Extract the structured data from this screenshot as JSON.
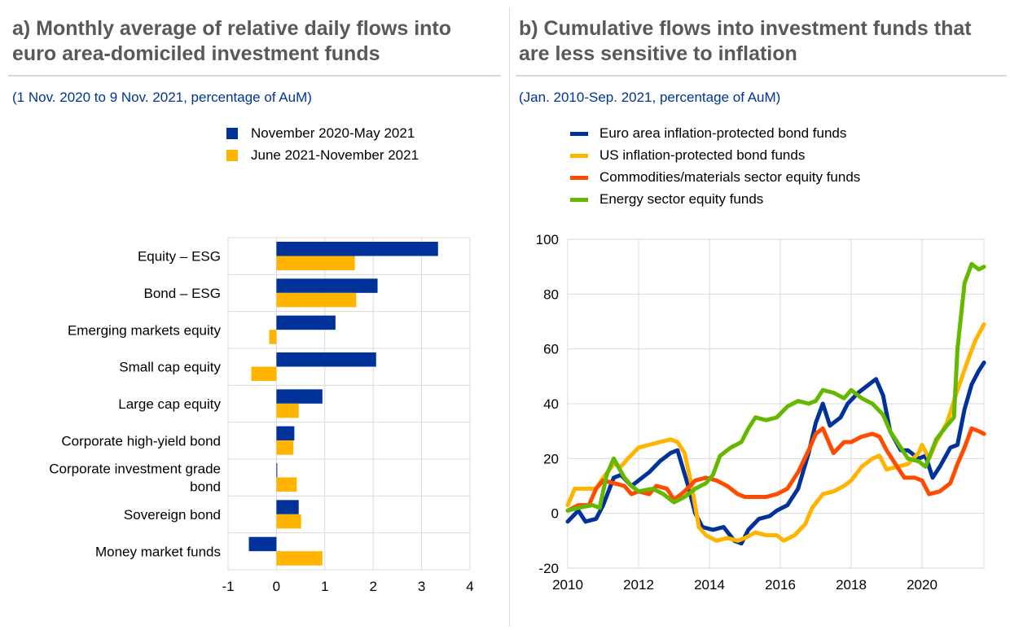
{
  "colors": {
    "blue": "#003299",
    "yellow": "#ffb400",
    "red": "#ff4b00",
    "green": "#65b800",
    "grid": "#d9d9d9"
  },
  "chart_data": [
    {
      "type": "bar",
      "orientation": "horizontal",
      "title": "a) Monthly average of relative daily flows into euro area-domiciled investment funds",
      "subtitle": "(1 Nov. 2020 to 9 Nov. 2021, percentage of AuM)",
      "categories": [
        "Equity – ESG",
        "Bond – ESG",
        "Emerging markets equity",
        "Small cap equity",
        "Large cap equity",
        "Corporate high-yield bond",
        "Corporate investment grade bond",
        "Sovereign bond",
        "Money market funds"
      ],
      "series": [
        {
          "name": "November 2020-May 2021",
          "color": "#003299",
          "values": [
            3.34,
            2.09,
            1.22,
            2.06,
            0.95,
            0.37,
            0.01,
            0.46,
            -0.57
          ]
        },
        {
          "name": "June 2021-November 2021",
          "color": "#ffb400",
          "values": [
            1.62,
            1.65,
            -0.15,
            -0.52,
            0.46,
            0.35,
            0.42,
            0.51,
            0.95
          ]
        }
      ],
      "xlim": [
        -1,
        4
      ],
      "xticks": [
        "-1",
        "0",
        "1",
        "2",
        "3",
        "4"
      ],
      "legend": "top"
    },
    {
      "type": "line",
      "title": "b) Cumulative flows into investment funds that are less sensitive to inflation",
      "subtitle": "(Jan. 2010-Sep. 2021, percentage of AuM)",
      "xlim": [
        2010,
        2021.8
      ],
      "ylim": [
        -20,
        100
      ],
      "xticks": [
        "2010",
        "2012",
        "2014",
        "2016",
        "2018",
        "2020"
      ],
      "yticks": [
        "-20",
        "0",
        "20",
        "40",
        "60",
        "80",
        "100"
      ],
      "legend": "top",
      "series": [
        {
          "name": "Euro area inflation-protected bond funds",
          "color": "#003299",
          "x": [
            2010,
            2010.3,
            2010.5,
            2010.8,
            2011.0,
            2011.3,
            2011.5,
            2011.8,
            2012.0,
            2012.3,
            2012.6,
            2012.9,
            2013.1,
            2013.4,
            2013.6,
            2013.8,
            2014.1,
            2014.4,
            2014.7,
            2014.9,
            2015.1,
            2015.4,
            2015.7,
            2015.9,
            2016.2,
            2016.5,
            2016.8,
            2017.0,
            2017.2,
            2017.4,
            2017.7,
            2017.9,
            2018.2,
            2018.5,
            2018.7,
            2018.9,
            2019.1,
            2019.4,
            2019.6,
            2019.9,
            2020.1,
            2020.3,
            2020.5,
            2020.8,
            2021.0,
            2021.2,
            2021.4,
            2021.6,
            2021.75
          ],
          "y": [
            -3,
            1,
            -3,
            -2,
            3,
            13,
            14,
            10,
            12,
            15,
            19,
            22,
            23,
            10,
            0,
            -5,
            -6,
            -5,
            -10,
            -11,
            -6,
            -2,
            -1,
            1,
            3,
            9,
            22,
            33,
            40,
            32,
            35,
            40,
            44,
            47,
            49,
            43,
            30,
            23,
            23,
            20,
            21,
            13,
            17,
            24,
            25,
            38,
            47,
            52,
            55
          ]
        },
        {
          "name": "US inflation-protected bond funds",
          "color": "#ffb400",
          "x": [
            2010,
            2010.2,
            2010.5,
            2010.8,
            2011.0,
            2011.3,
            2011.5,
            2011.7,
            2012.0,
            2012.3,
            2012.6,
            2012.9,
            2013.1,
            2013.3,
            2013.5,
            2013.7,
            2013.9,
            2014.2,
            2014.5,
            2014.8,
            2015.0,
            2015.3,
            2015.6,
            2015.9,
            2016.1,
            2016.4,
            2016.7,
            2016.9,
            2017.2,
            2017.5,
            2017.8,
            2018.0,
            2018.3,
            2018.6,
            2018.8,
            2019.0,
            2019.3,
            2019.6,
            2019.9,
            2020.0,
            2020.2,
            2020.4,
            2020.7,
            2021.0,
            2021.3,
            2021.5,
            2021.75
          ],
          "y": [
            3,
            9,
            9,
            9,
            13,
            18,
            17,
            20,
            24,
            25,
            26,
            27,
            26,
            22,
            10,
            -5,
            -8,
            -10,
            -9,
            -10,
            -9,
            -7,
            -8,
            -8,
            -10,
            -8,
            -4,
            2,
            7,
            8,
            10,
            12,
            17,
            20,
            21,
            16,
            17,
            18,
            22,
            25,
            20,
            26,
            33,
            45,
            56,
            63,
            69
          ]
        },
        {
          "name": "Commodities/materials sector equity funds",
          "color": "#ff4b00",
          "x": [
            2010,
            2010.3,
            2010.6,
            2010.8,
            2011.0,
            2011.3,
            2011.6,
            2011.8,
            2012.0,
            2012.3,
            2012.5,
            2012.8,
            2013.0,
            2013.3,
            2013.6,
            2013.9,
            2014.2,
            2014.5,
            2014.8,
            2015.0,
            2015.3,
            2015.6,
            2015.9,
            2016.2,
            2016.5,
            2016.8,
            2017.0,
            2017.2,
            2017.5,
            2017.8,
            2018.0,
            2018.3,
            2018.6,
            2018.8,
            2019.0,
            2019.3,
            2019.5,
            2019.8,
            2020.0,
            2020.2,
            2020.5,
            2020.8,
            2021.0,
            2021.2,
            2021.4,
            2021.6,
            2021.75
          ],
          "y": [
            1,
            3,
            3,
            9,
            12,
            11,
            10,
            7,
            8,
            7,
            10,
            9,
            5,
            8,
            12,
            13,
            12,
            10,
            7,
            6,
            6,
            6,
            7,
            9,
            15,
            23,
            29,
            31,
            22,
            26,
            26,
            28,
            29,
            28,
            23,
            17,
            13,
            13,
            12,
            7,
            8,
            11,
            18,
            24,
            31,
            30,
            29
          ]
        },
        {
          "name": "Energy sector equity funds",
          "color": "#65b800",
          "x": [
            2010,
            2010.3,
            2010.7,
            2010.9,
            2011.1,
            2011.3,
            2011.6,
            2011.8,
            2012.0,
            2012.4,
            2012.7,
            2013.0,
            2013.3,
            2013.6,
            2013.9,
            2014.1,
            2014.3,
            2014.6,
            2014.9,
            2015.1,
            2015.3,
            2015.6,
            2015.9,
            2016.2,
            2016.5,
            2016.8,
            2017.0,
            2017.2,
            2017.5,
            2017.8,
            2018.0,
            2018.3,
            2018.6,
            2018.9,
            2019.1,
            2019.4,
            2019.6,
            2019.9,
            2020.1,
            2020.4,
            2020.7,
            2020.9,
            2021.0,
            2021.2,
            2021.4,
            2021.6,
            2021.75
          ],
          "y": [
            1,
            2,
            3,
            2,
            14,
            20,
            13,
            10,
            8,
            9,
            7,
            4,
            6,
            9,
            11,
            14,
            21,
            24,
            26,
            31,
            35,
            34,
            35,
            39,
            41,
            40,
            41,
            45,
            44,
            42,
            45,
            42,
            40,
            36,
            30,
            24,
            20,
            19,
            17,
            27,
            32,
            35,
            60,
            84,
            91,
            89,
            90
          ]
        }
      ]
    }
  ]
}
